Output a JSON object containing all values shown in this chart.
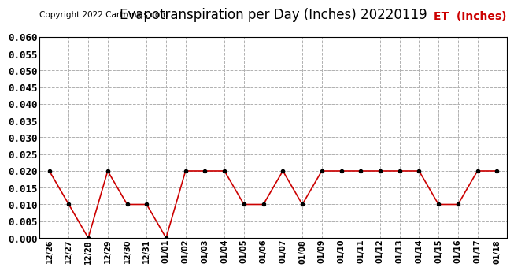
{
  "title": "Evapotranspiration per Day (Inches) 20220119",
  "copyright_text": "Copyright 2022 Cartronics.com",
  "legend_label": "ET  (Inches)",
  "legend_color": "#cc0000",
  "dates": [
    "12/26",
    "12/27",
    "12/28",
    "12/29",
    "12/30",
    "12/31",
    "01/01",
    "01/02",
    "01/03",
    "01/04",
    "01/05",
    "01/06",
    "01/07",
    "01/08",
    "01/09",
    "01/10",
    "01/11",
    "01/12",
    "01/13",
    "01/14",
    "01/15",
    "01/16",
    "01/17",
    "01/18"
  ],
  "values": [
    0.02,
    0.01,
    0.0,
    0.02,
    0.01,
    0.01,
    0.0,
    0.02,
    0.02,
    0.02,
    0.01,
    0.01,
    0.02,
    0.01,
    0.02,
    0.02,
    0.02,
    0.02,
    0.02,
    0.02,
    0.01,
    0.01,
    0.02,
    0.02
  ],
  "line_color": "#cc0000",
  "marker_color": "#000000",
  "ylim": [
    0.0,
    0.06
  ],
  "yticks": [
    0.0,
    0.005,
    0.01,
    0.015,
    0.02,
    0.025,
    0.03,
    0.035,
    0.04,
    0.045,
    0.05,
    0.055,
    0.06
  ],
  "background_color": "#ffffff",
  "grid_color": "#b0b0b0",
  "title_fontsize": 12,
  "copyright_fontsize": 7.5,
  "legend_fontsize": 10,
  "ytick_fontsize": 9,
  "xtick_fontsize": 7
}
